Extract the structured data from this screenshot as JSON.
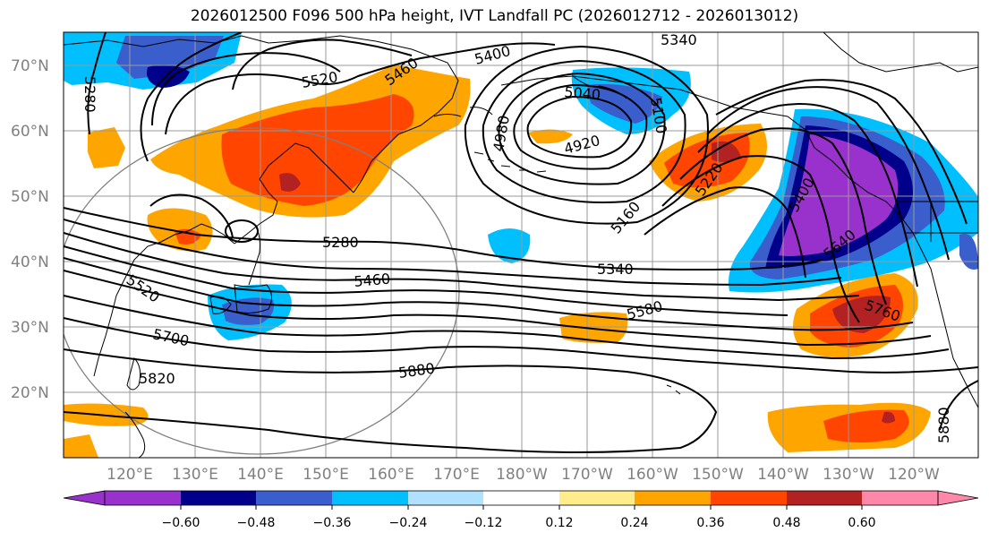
{
  "title": "2026012500 F096 500 hPa height, IVT Landfall PC (2026012712 - 2026013012)",
  "lat_labels": [
    "70°N",
    "60°N",
    "50°N",
    "40°N",
    "30°N",
    "20°N"
  ],
  "lon_labels": [
    "120°E",
    "130°E",
    "140°E",
    "150°E",
    "160°E",
    "170°E",
    "180°W",
    "170°W",
    "160°W",
    "150°W",
    "140°W",
    "130°W",
    "120°W"
  ],
  "contour_labels": [
    "5340",
    "5400",
    "5520",
    "5460",
    "5280",
    "4980",
    "4920",
    "5040",
    "5100",
    "5160",
    "5220",
    "5280",
    "5340",
    "5460",
    "5580",
    "5520",
    "5700",
    "5820",
    "5880",
    "5400",
    "5640",
    "5760",
    "5880"
  ],
  "colorbar": {
    "colors": [
      "#9932CC",
      "#00008B",
      "#3A5FCD",
      "#00BFFF",
      "#B0E2FF",
      "#FFFFFF",
      "#FFEC8B",
      "#FFA500",
      "#FF4500",
      "#B22222",
      "#FF88AA"
    ],
    "tick_labels": [
      "−0.60",
      "−0.48",
      "−0.36",
      "−0.24",
      "−0.12",
      "0.12",
      "0.24",
      "0.36",
      "0.48",
      "0.60"
    ],
    "levels": [
      -0.6,
      -0.48,
      -0.36,
      -0.24,
      -0.12,
      0.12,
      0.24,
      0.36,
      0.48,
      0.6
    ],
    "extend": "both"
  },
  "map": {
    "projection": "PlateCarree",
    "lon_range": "110°E to 115°W",
    "lat_range": "10°N to 75°N",
    "contour_field": "500 hPa height",
    "shaded_field": "IVT Landfall PC"
  }
}
